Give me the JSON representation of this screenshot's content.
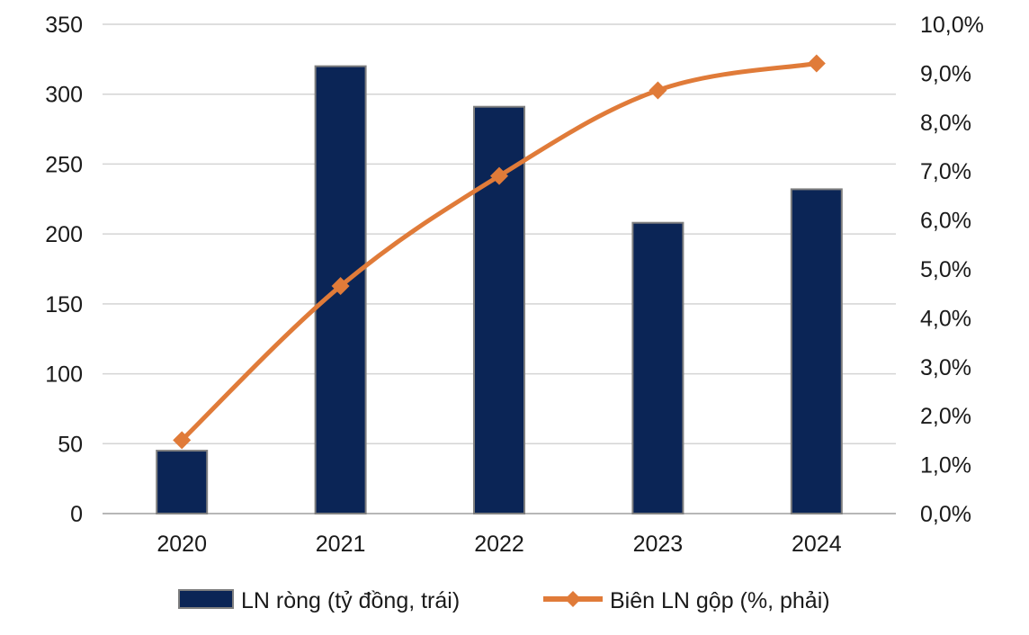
{
  "chart_data": {
    "type": "bar+line",
    "categories": [
      "2020",
      "2021",
      "2022",
      "2023",
      "2024"
    ],
    "series": [
      {
        "name": "LN ròng (tỷ đồng, trái)",
        "type": "bar",
        "axis": "left",
        "values": [
          45,
          320,
          291,
          208,
          232
        ],
        "color": "#0b2556",
        "stroke": "#7f7f7f"
      },
      {
        "name": "Biên LN gộp (%, phải)",
        "type": "line",
        "axis": "right",
        "values": [
          1.5,
          4.65,
          6.9,
          8.65,
          9.2
        ],
        "color": "#e07b39",
        "marker": "diamond",
        "smooth": true
      }
    ],
    "y_left": {
      "min": 0,
      "max": 350,
      "ticks": [
        "0",
        "50",
        "100",
        "150",
        "200",
        "250",
        "300",
        "350"
      ]
    },
    "y_right": {
      "min": 0,
      "max": 10,
      "ticks": [
        "0,0%",
        "1,0%",
        "2,0%",
        "3,0%",
        "4,0%",
        "5,0%",
        "6,0%",
        "7,0%",
        "8,0%",
        "9,0%",
        "10,0%"
      ]
    },
    "grid": "horizontal",
    "legend": "bottom",
    "title": "",
    "xlabel": "",
    "ylabel": ""
  }
}
